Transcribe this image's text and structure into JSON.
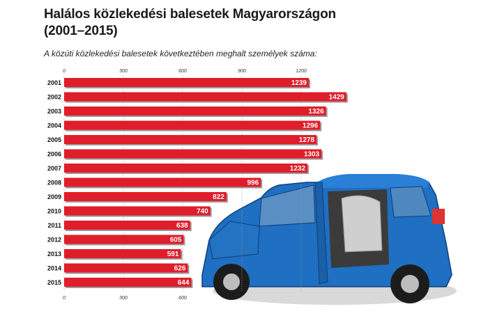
{
  "title_line1": "Halálos közlekedési balesetek Magyarországon",
  "title_line2": "(2001–2015)",
  "subtitle": "A közúti közlekedési balesetek következtében meghalt személyek száma:",
  "colors": {
    "bar": "#e01d2a",
    "bar_shadow": "#9a9a9a",
    "car_body": "#1f6fc2",
    "car_dark": "#0f3f7a"
  },
  "car_image": "car-illustration",
  "chart_data": {
    "type": "bar",
    "orientation": "horizontal",
    "categories": [
      "2001",
      "2002",
      "2003",
      "2004",
      "2005",
      "2006",
      "2007",
      "2008",
      "2009",
      "2010",
      "2011",
      "2012",
      "2013",
      "2014",
      "2015"
    ],
    "values": [
      1239,
      1429,
      1326,
      1296,
      1278,
      1303,
      1232,
      996,
      822,
      740,
      638,
      605,
      591,
      626,
      644
    ],
    "title": "Halálos közlekedési balesetek Magyarországon (2001–2015)",
    "subtitle": "A közúti közlekedési balesetek következtében meghalt személyek száma:",
    "xlim": [
      0,
      1200
    ],
    "top_ticks": [
      "0",
      "300",
      "600",
      "900",
      "1200"
    ],
    "bottom_ticks": [
      "0",
      "300",
      "600"
    ],
    "grid": true,
    "legend": "none"
  }
}
